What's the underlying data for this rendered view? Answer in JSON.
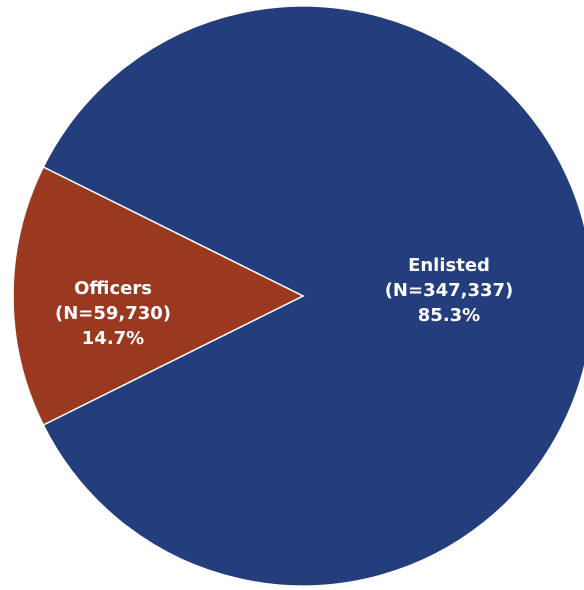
{
  "chart_data": {
    "type": "pie",
    "slices": [
      {
        "category": "Enlisted",
        "n_label": "(N=347,337)",
        "percent_label": "85.3%",
        "value": 347337,
        "color": "#233d7d"
      },
      {
        "category": "Officers",
        "n_label": "(N=59,730)",
        "percent_label": "14.7%",
        "value": 59730,
        "color": "#9b3820"
      }
    ],
    "legend": "none",
    "slice_border_color": "#ffffff"
  }
}
